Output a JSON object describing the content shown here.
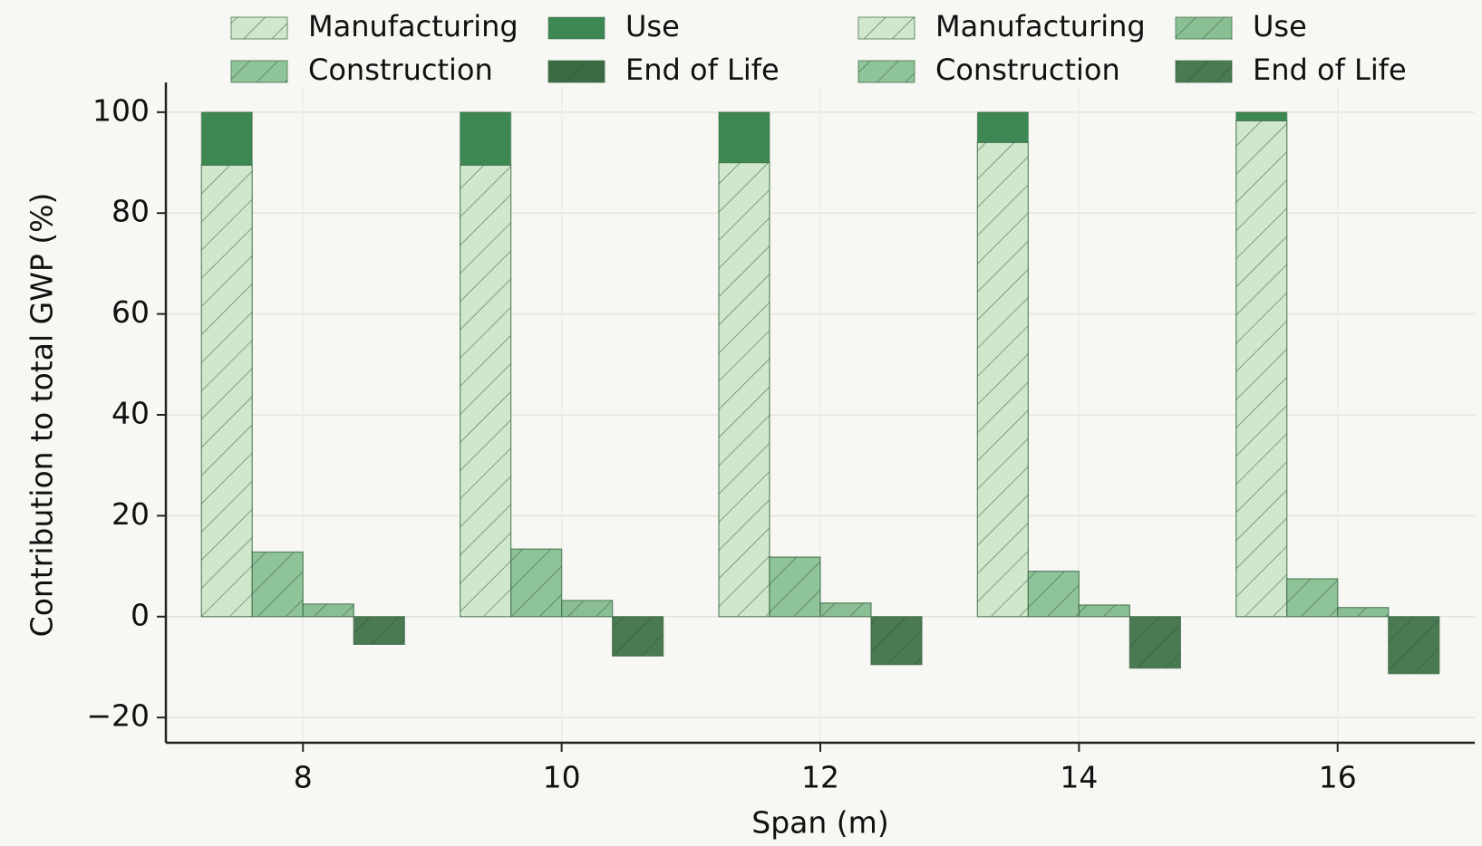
{
  "chart_data": {
    "type": "bar",
    "x_label": "Span (m)",
    "y_label": "Contribution to total GWP (%)",
    "x": [
      8,
      10,
      12,
      14,
      16
    ],
    "xlim": [
      6.94,
      17.06
    ],
    "xticks": [
      8,
      10,
      12,
      14,
      16
    ],
    "ylim": [
      -25,
      105
    ],
    "yticks": [
      {
        "value": -20,
        "label": "−20"
      },
      0,
      20,
      40,
      60,
      80,
      100
    ],
    "grid": true,
    "stacked_series": [
      {
        "name": "Manufacturing",
        "color": "#cfe8cc",
        "hatch": true,
        "values": [
          null,
          null,
          null,
          null,
          null
        ]
      },
      {
        "name": "Construction",
        "color": "#8fc49a",
        "hatch": true,
        "values": [
          null,
          null,
          null,
          null,
          null
        ]
      },
      {
        "name": "Use",
        "color": "#3d8753",
        "hatch": false,
        "values": [
          10.5,
          10.5,
          10,
          6,
          1.7
        ]
      },
      {
        "name": "End of Life",
        "color": "#3a6b44",
        "hatch": true,
        "values": [
          null,
          null,
          null,
          null,
          null
        ]
      }
    ],
    "series": [
      {
        "name": "Manufacturing",
        "color": "#cfe8cc",
        "hatch": true,
        "values": [
          89.5,
          89.5,
          90,
          94,
          98.3
        ]
      },
      {
        "name": "Construction",
        "color": "#8fc49a",
        "hatch": true,
        "values": [
          12.8,
          13.4,
          11.8,
          9,
          7.5
        ]
      },
      {
        "name": "Use",
        "color": "#8abf95",
        "hatch": true,
        "values": [
          2.5,
          3.2,
          2.7,
          2.3,
          1.8
        ]
      },
      {
        "name": "End of Life",
        "color": "#4a7a52",
        "hatch": true,
        "values": [
          -5.5,
          -7.8,
          -9.5,
          -10.2,
          -11.3
        ]
      }
    ]
  }
}
